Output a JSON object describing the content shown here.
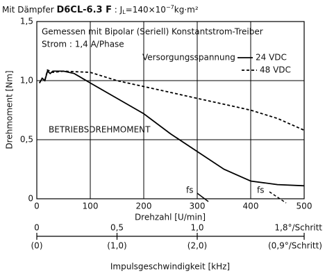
{
  "chart_data": {
    "type": "line",
    "title_parts": [
      "Mit Dämpfer ",
      "D6CL-6.3 F",
      " : J",
      "L",
      "=140×10",
      "−7",
      "kg·m²"
    ],
    "annotations": [
      "Gemessen mit Bipolar (Seriell) Konstantstrom-Treiber",
      "Strom : 1,4 A/Phase",
      "Versorgungsspannung",
      "BETRIEBSDREHMOMENT",
      "fs",
      "fs"
    ],
    "xlabel": "Drehzahl [U/min]",
    "ylabel": "Drehmoment [Nm]",
    "xlim": [
      0,
      500
    ],
    "xticks": [
      0,
      100,
      200,
      300,
      400,
      500
    ],
    "ylim": [
      0,
      1.5
    ],
    "yticks": [
      {
        "value": 0,
        "label": "0"
      },
      {
        "value": 0.5,
        "label": "0,5"
      },
      {
        "value": 1.0,
        "label": "1,0"
      },
      {
        "value": 1.5,
        "label": "1,5"
      }
    ],
    "grid": true,
    "series": [
      {
        "name": "24 VDC",
        "color": "#000000",
        "dash": false,
        "x": [
          5,
          10,
          15,
          20,
          25,
          30,
          50,
          70,
          100,
          150,
          200,
          250,
          300,
          350,
          400,
          450,
          500
        ],
        "values": [
          0.98,
          1.02,
          1.0,
          1.08,
          1.06,
          1.08,
          1.08,
          1.06,
          0.98,
          0.85,
          0.72,
          0.55,
          0.4,
          0.25,
          0.15,
          0.12,
          0.11
        ]
      },
      {
        "name": "48 VDC",
        "color": "#000000",
        "dash": true,
        "x": [
          5,
          10,
          15,
          20,
          30,
          50,
          100,
          150,
          200,
          250,
          300,
          350,
          400,
          450,
          500
        ],
        "values": [
          0.98,
          1.02,
          1.0,
          1.09,
          1.07,
          1.08,
          1.07,
          1.0,
          0.95,
          0.9,
          0.85,
          0.8,
          0.75,
          0.68,
          0.58
        ]
      }
    ],
    "x2label": "Impulsgeschwindigkeit [kHz]",
    "x2lim": [
      0,
      1.6667
    ],
    "x2ticks": [
      {
        "value": 0,
        "label": "0"
      },
      {
        "value": 0.5,
        "label": "0,5"
      },
      {
        "value": 1.0,
        "label": "1,0"
      }
    ],
    "x2ticks_sub": [
      "(0)",
      "(1,0)",
      "(2,0)"
    ],
    "x2_end_labels": [
      "1,8°/Schritt",
      "(0,9°/Schritt)"
    ]
  }
}
